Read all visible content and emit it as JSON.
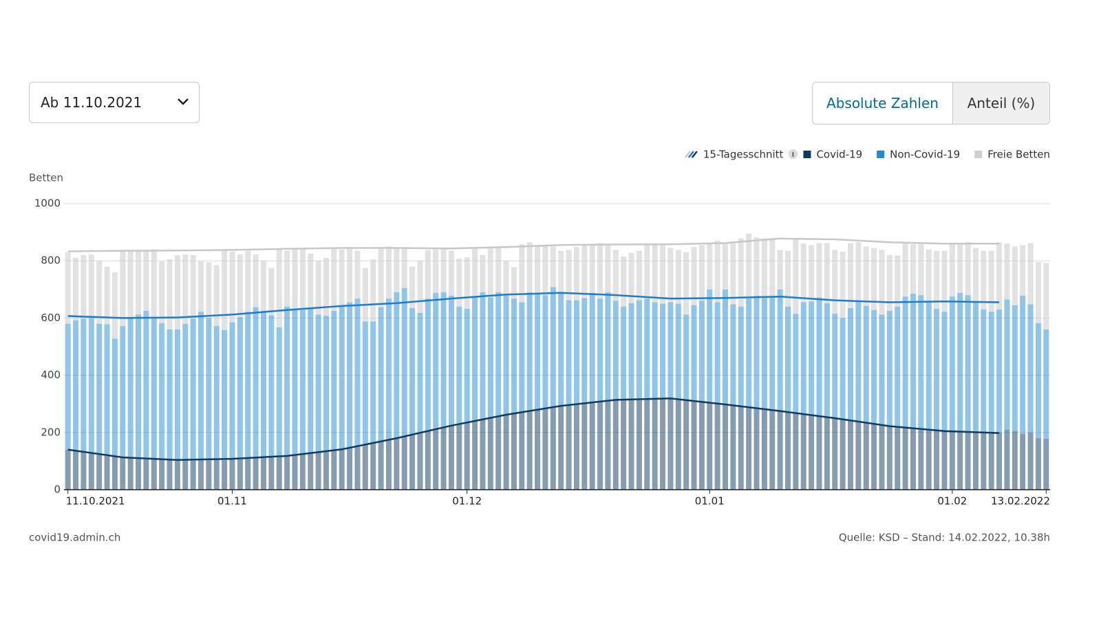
{
  "controls": {
    "date_select": "Ab 11.10.2021",
    "toggle": [
      "Absolute Zahlen",
      "Anteil (%)"
    ]
  },
  "chart_data": {
    "type": "bar",
    "stacked": true,
    "y_label": "Betten",
    "average_label": "15-Tagesschnitt",
    "categories": [
      "2021-10-11",
      "2021-10-12",
      "2021-10-13",
      "2021-10-14",
      "2021-10-15",
      "2021-10-16",
      "2021-10-17",
      "2021-10-18",
      "2021-10-19",
      "2021-10-20",
      "2021-10-21",
      "2021-10-22",
      "2021-10-23",
      "2021-10-24",
      "2021-10-25",
      "2021-10-26",
      "2021-10-27",
      "2021-10-28",
      "2021-10-29",
      "2021-10-30",
      "2021-10-31",
      "2021-11-01",
      "2021-11-02",
      "2021-11-03",
      "2021-11-04",
      "2021-11-05",
      "2021-11-06",
      "2021-11-07",
      "2021-11-08",
      "2021-11-09",
      "2021-11-10",
      "2021-11-11",
      "2021-11-12",
      "2021-11-13",
      "2021-11-14",
      "2021-11-15",
      "2021-11-16",
      "2021-11-17",
      "2021-11-18",
      "2021-11-19",
      "2021-11-20",
      "2021-11-21",
      "2021-11-22",
      "2021-11-23",
      "2021-11-24",
      "2021-11-25",
      "2021-11-26",
      "2021-11-27",
      "2021-11-28",
      "2021-11-29",
      "2021-11-30",
      "2021-12-01",
      "2021-12-02",
      "2021-12-03",
      "2021-12-04",
      "2021-12-05",
      "2021-12-06",
      "2021-12-07",
      "2021-12-08",
      "2021-12-09",
      "2021-12-10",
      "2021-12-11",
      "2021-12-12",
      "2021-12-13",
      "2021-12-14",
      "2021-12-15",
      "2021-12-16",
      "2021-12-17",
      "2021-12-18",
      "2021-12-19",
      "2021-12-20",
      "2021-12-21",
      "2021-12-22",
      "2021-12-23",
      "2021-12-24",
      "2021-12-25",
      "2021-12-26",
      "2021-12-27",
      "2021-12-28",
      "2021-12-29",
      "2021-12-30",
      "2021-12-31",
      "2022-01-01",
      "2022-01-02",
      "2022-01-03",
      "2022-01-04",
      "2022-01-05",
      "2022-01-06",
      "2022-01-07",
      "2022-01-08",
      "2022-01-09",
      "2022-01-10",
      "2022-01-11",
      "2022-01-12",
      "2022-01-13",
      "2022-01-14",
      "2022-01-15",
      "2022-01-16",
      "2022-01-17",
      "2022-01-18",
      "2022-01-19",
      "2022-01-20",
      "2022-01-21",
      "2022-01-22",
      "2022-01-23",
      "2022-01-24",
      "2022-01-25",
      "2022-01-26",
      "2022-01-27",
      "2022-01-28",
      "2022-01-29",
      "2022-01-30",
      "2022-01-31",
      "2022-02-01",
      "2022-02-02",
      "2022-02-03",
      "2022-02-04",
      "2022-02-05",
      "2022-02-06",
      "2022-02-07",
      "2022-02-08",
      "2022-02-09",
      "2022-02-10",
      "2022-02-11",
      "2022-02-12",
      "2022-02-13"
    ],
    "xticks": [
      {
        "value": "2021-10-11",
        "label": "11.10.2021"
      },
      {
        "value": "2021-11-01",
        "label": "01.11"
      },
      {
        "value": "2021-12-01",
        "label": "01.12"
      },
      {
        "value": "2022-01-01",
        "label": "01.01"
      },
      {
        "value": "2022-02-01",
        "label": "01.02"
      },
      {
        "value": "2022-02-13",
        "label": "13.02.2022"
      }
    ],
    "ylim": [
      0,
      1000
    ],
    "yticks": [
      0,
      200,
      400,
      600,
      800,
      1000
    ],
    "grid": true,
    "series": [
      {
        "name": "Covid-19",
        "color": "#0b3a63",
        "values": [
          140,
          135,
          130,
          125,
          122,
          118,
          115,
          112,
          110,
          108,
          106,
          105,
          104,
          103,
          102,
          102,
          101,
          102,
          103,
          104,
          103,
          105,
          106,
          108,
          110,
          112,
          113,
          115,
          118,
          120,
          123,
          126,
          130,
          133,
          137,
          141,
          146,
          150,
          156,
          162,
          168,
          174,
          180,
          186,
          192,
          198,
          205,
          212,
          218,
          224,
          230,
          236,
          241,
          247,
          252,
          258,
          262,
          266,
          271,
          276,
          280,
          284,
          289,
          293,
          297,
          300,
          303,
          306,
          309,
          311,
          314,
          316,
          318,
          319,
          320,
          320,
          320,
          319,
          318,
          316,
          313,
          310,
          306,
          302,
          298,
          294,
          290,
          287,
          284,
          281,
          278,
          275,
          272,
          268,
          265,
          262,
          258,
          254,
          250,
          246,
          242,
          238,
          234,
          230,
          226,
          222,
          218,
          215,
          212,
          209,
          207,
          205,
          204,
          203,
          202,
          201,
          200,
          199,
          198,
          200,
          210,
          205,
          195,
          200,
          180,
          178
        ]
      },
      {
        "name": "Non-Covid-19",
        "color": "#1f8ad8",
        "values": [
          440,
          457,
          468,
          475,
          458,
          460,
          413,
          460,
          488,
          504,
          519,
          495,
          478,
          457,
          458,
          478,
          497,
          520,
          497,
          468,
          455,
          480,
          497,
          514,
          528,
          513,
          497,
          453,
          522,
          513,
          505,
          511,
          482,
          475,
          488,
          501,
          509,
          518,
          432,
          426,
          470,
          494,
          510,
          519,
          443,
          420,
          463,
          476,
          472,
          454,
          410,
          396,
          434,
          443,
          420,
          432,
          418,
          402,
          384,
          414,
          408,
          396,
          419,
          397,
          365,
          362,
          367,
          382,
          359,
          379,
          346,
          324,
          334,
          343,
          348,
          335,
          330,
          336,
          332,
          296,
          332,
          350,
          394,
          353,
          402,
          354,
          350,
          381,
          394,
          389,
          397,
          425,
          368,
          347,
          390,
          396,
          414,
          398,
          365,
          354,
          393,
          424,
          408,
          398,
          386,
          403,
          422,
          460,
          473,
          471,
          448,
          427,
          418,
          472,
          486,
          479,
          455,
          431,
          424,
          430,
          455,
          440,
          483,
          448,
          402,
          382
        ]
      },
      {
        "name": "Freie Betten",
        "color": "#cfcfcf",
        "values": [
          250,
          218,
          222,
          222,
          220,
          202,
          232,
          266,
          237,
          226,
          210,
          240,
          216,
          245,
          260,
          242,
          222,
          176,
          195,
          213,
          277,
          247,
          219,
          213,
          184,
          175,
          165,
          272,
          195,
          212,
          214,
          188,
          188,
          202,
          220,
          198,
          190,
          167,
          187,
          217,
          210,
          182,
          155,
          140,
          145,
          182,
          170,
          152,
          152,
          157,
          168,
          180,
          170,
          130,
          173,
          155,
          120,
          110,
          203,
          175,
          167,
          172,
          142,
          145,
          176,
          186,
          188,
          170,
          194,
          170,
          178,
          175,
          176,
          173,
          192,
          205,
          205,
          190,
          188,
          218,
          203,
          195,
          160,
          215,
          162,
          220,
          238,
          227,
          204,
          208,
          203,
          138,
          195,
          260,
          205,
          197,
          190,
          210,
          223,
          232,
          227,
          203,
          208,
          217,
          226,
          195,
          178,
          187,
          173,
          178,
          185,
          203,
          213,
          187,
          170,
          185,
          190,
          205,
          213,
          235,
          195,
          205,
          177,
          214,
          213,
          232
        ]
      }
    ],
    "line_x": [
      "2021-10-11",
      "2021-10-18",
      "2021-10-25",
      "2021-11-01",
      "2021-11-08",
      "2021-11-15",
      "2021-11-22",
      "2021-11-29",
      "2021-12-06",
      "2021-12-13",
      "2021-12-20",
      "2021-12-27",
      "2022-01-03",
      "2022-01-10",
      "2022-01-17",
      "2022-01-24",
      "2022-01-31",
      "2022-02-07"
    ],
    "lines": [
      {
        "color": "#c8c8c8",
        "values": [
          833,
          835,
          836,
          838,
          842,
          845,
          845,
          843,
          848,
          855,
          857,
          858,
          862,
          878,
          875,
          865,
          860,
          860
        ]
      },
      {
        "color": "#1a7ccf",
        "values": [
          607,
          600,
          602,
          612,
          628,
          642,
          652,
          668,
          682,
          688,
          680,
          668,
          670,
          675,
          662,
          655,
          658,
          655
        ]
      },
      {
        "color": "#0b3a63",
        "values": [
          140,
          113,
          104,
          108,
          118,
          141,
          180,
          224,
          262,
          293,
          314,
          319,
          298,
          275,
          250,
          222,
          205,
          198
        ]
      }
    ]
  },
  "footer": {
    "site": "covid19.admin.ch",
    "source": "Quelle: KSD – Stand: 14.02.2022, 10.38h"
  }
}
